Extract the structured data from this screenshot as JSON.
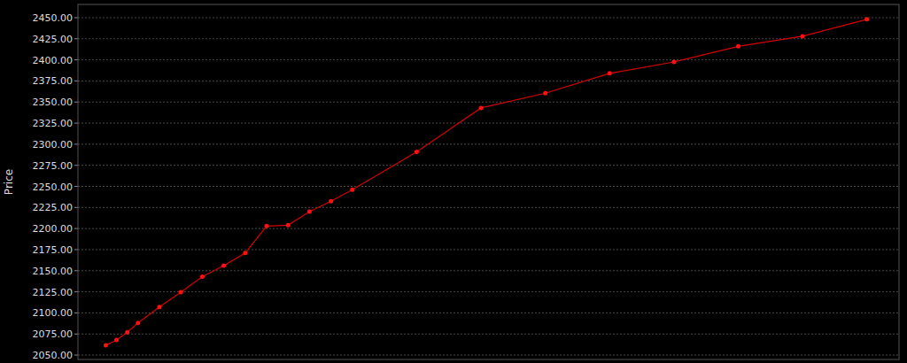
{
  "chart_data": {
    "type": "line",
    "y_label": "Price",
    "x": [
      0,
      1,
      2,
      3,
      5,
      7,
      9,
      11,
      13,
      15,
      17,
      19,
      21,
      23,
      29,
      35,
      41,
      47,
      53,
      59,
      65,
      71
    ],
    "values": [
      2061.5,
      2067.8,
      2077,
      2088,
      2107,
      2124.5,
      2143,
      2156,
      2171,
      2203,
      2204,
      2220,
      2232.5,
      2246,
      2291,
      2343,
      2360.5,
      2384,
      2397.5,
      2416,
      2428,
      2448
    ],
    "color": "#d40000",
    "marker": "circle",
    "line_style": "solid",
    "xlim": [
      -2.6,
      74
    ],
    "ylim": [
      2044.8,
      2465.7
    ],
    "yticks": [
      {
        "value": 2050,
        "label": "2050.00"
      },
      {
        "value": 2075,
        "label": "2075.00"
      },
      {
        "value": 2100,
        "label": "2100.00"
      },
      {
        "value": 2125,
        "label": "2125.00"
      },
      {
        "value": 2150,
        "label": "2150.00"
      },
      {
        "value": 2175,
        "label": "2175.00"
      },
      {
        "value": 2200,
        "label": "2200.00"
      },
      {
        "value": 2225,
        "label": "2225.00"
      },
      {
        "value": 2250,
        "label": "2250.00"
      },
      {
        "value": 2275,
        "label": "2275.00"
      },
      {
        "value": 2300,
        "label": "2300.00"
      },
      {
        "value": 2325,
        "label": "2325.00"
      },
      {
        "value": 2350,
        "label": "2350.00"
      },
      {
        "value": 2375,
        "label": "2375.00"
      },
      {
        "value": 2400,
        "label": "2400.00"
      },
      {
        "value": 2425,
        "label": "2425.00"
      },
      {
        "value": 2450,
        "label": "2450.00"
      }
    ],
    "grid": true,
    "tick_labels": "y"
  }
}
